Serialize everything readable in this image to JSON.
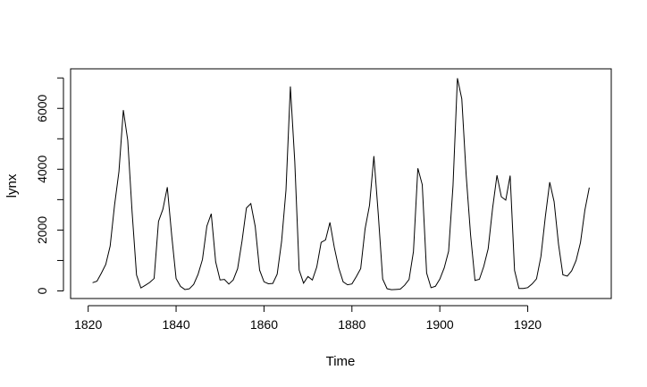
{
  "chart_data": {
    "type": "line",
    "title": "",
    "xlabel": "Time",
    "ylabel": "lynx",
    "xlim": [
      1816,
      1939
    ],
    "ylim": [
      -250,
      7300
    ],
    "x_ticks": [
      1820,
      1840,
      1860,
      1880,
      1900,
      1920
    ],
    "y_ticks": [
      0,
      2000,
      4000,
      6000
    ],
    "y_minor_ticks": [
      1000,
      3000,
      5000,
      7000
    ],
    "grid": false,
    "legend": "none",
    "line_color": "#000000",
    "series": [
      {
        "x_start": 1821,
        "x_step": 1,
        "values": [
          269,
          321,
          585,
          871,
          1475,
          2821,
          3928,
          5943,
          4950,
          2577,
          523,
          98,
          184,
          279,
          409,
          2285,
          2685,
          3409,
          1824,
          409,
          151,
          45,
          68,
          213,
          546,
          1033,
          2129,
          2536,
          957,
          361,
          377,
          225,
          360,
          731,
          1638,
          2725,
          2871,
          2119,
          684,
          299,
          236,
          245,
          552,
          1623,
          3311,
          6721,
          4254,
          687,
          255,
          473,
          358,
          784,
          1594,
          1676,
          2251,
          1426,
          756,
          299,
          201,
          229,
          469,
          736,
          2042,
          2811,
          4431,
          2511,
          389,
          73,
          39,
          49,
          59,
          188,
          377,
          1292,
          4031,
          3495,
          587,
          105,
          153,
          387,
          758,
          1307,
          3465,
          6991,
          6313,
          3794,
          1836,
          345,
          382,
          808,
          1388,
          2713,
          3800,
          3091,
          2985,
          3790,
          674,
          81,
          80,
          108,
          229,
          399,
          1132,
          2432,
          3574,
          2935,
          1537,
          529,
          485,
          662,
          1000,
          1590,
          2657,
          3396
        ]
      }
    ]
  }
}
